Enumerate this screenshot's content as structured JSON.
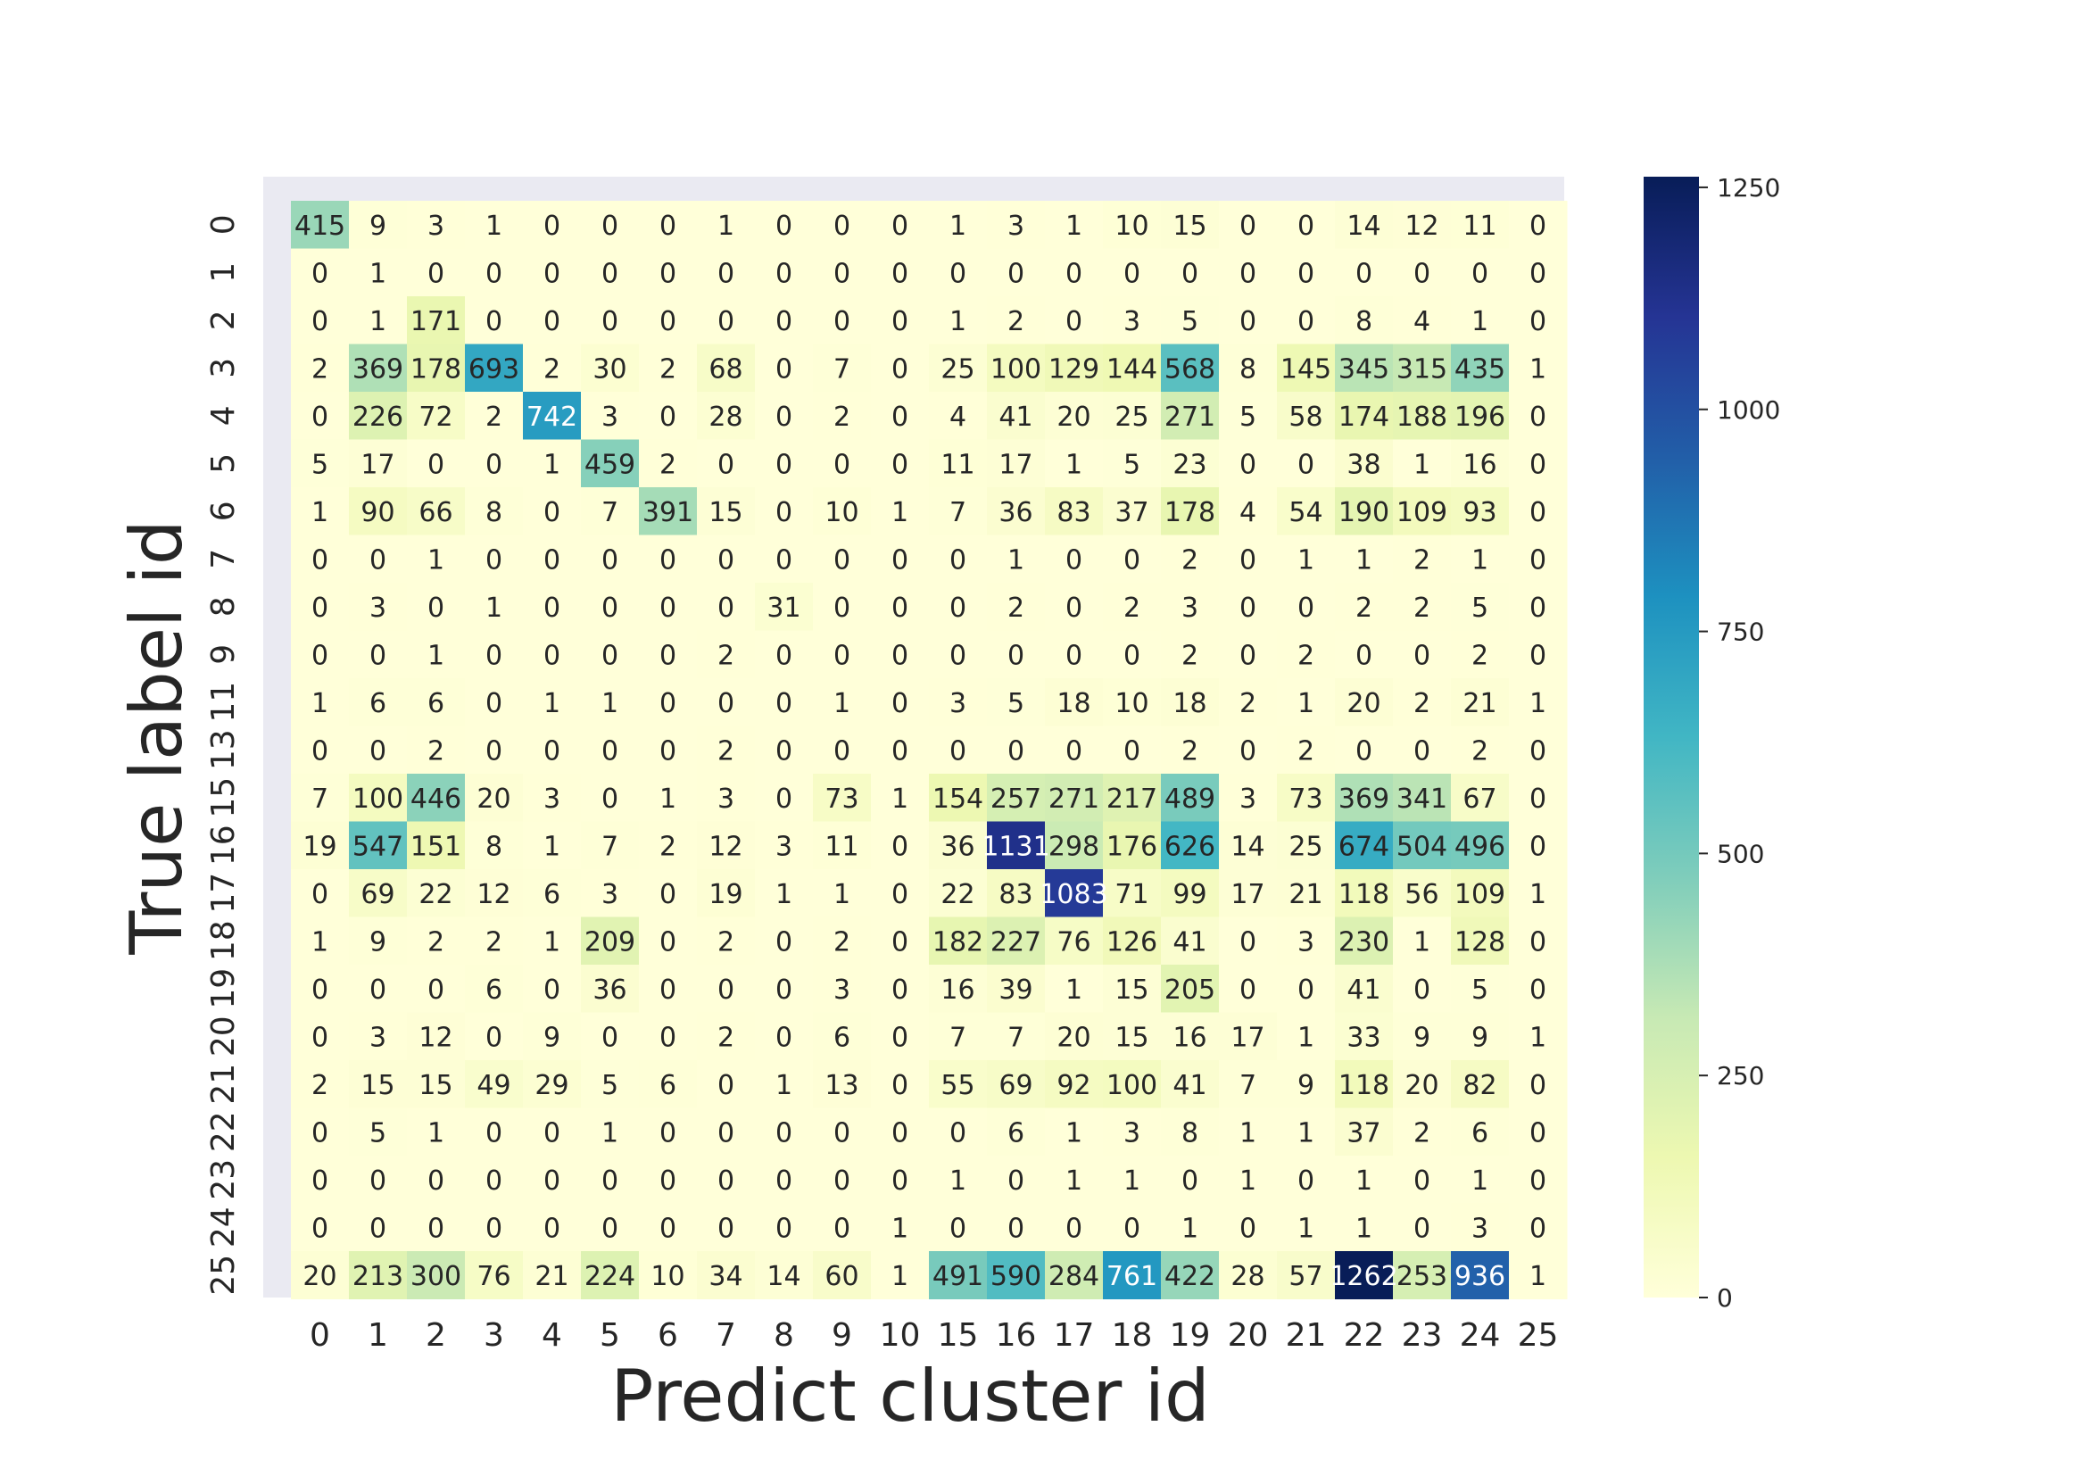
{
  "chart_data": {
    "type": "heatmap",
    "xlabel": "Predict cluster id",
    "ylabel": "True label id",
    "x_categories": [
      "0",
      "1",
      "2",
      "3",
      "4",
      "5",
      "6",
      "7",
      "8",
      "9",
      "10",
      "15",
      "16",
      "17",
      "18",
      "19",
      "20",
      "21",
      "22",
      "23",
      "24",
      "25"
    ],
    "y_categories": [
      "0",
      "1",
      "2",
      "3",
      "4",
      "5",
      "6",
      "7",
      "8",
      "9",
      "11",
      "13",
      "15",
      "16",
      "17",
      "18",
      "19",
      "20",
      "21",
      "22",
      "23",
      "24",
      "25"
    ],
    "values": [
      [
        415,
        9,
        3,
        1,
        0,
        0,
        0,
        1,
        0,
        0,
        0,
        1,
        3,
        1,
        10,
        15,
        0,
        0,
        14,
        12,
        11,
        0
      ],
      [
        0,
        1,
        0,
        0,
        0,
        0,
        0,
        0,
        0,
        0,
        0,
        0,
        0,
        0,
        0,
        0,
        0,
        0,
        0,
        0,
        0,
        0
      ],
      [
        0,
        1,
        171,
        0,
        0,
        0,
        0,
        0,
        0,
        0,
        0,
        1,
        2,
        0,
        3,
        5,
        0,
        0,
        8,
        4,
        1,
        0
      ],
      [
        2,
        369,
        178,
        693,
        2,
        30,
        2,
        68,
        0,
        7,
        0,
        25,
        100,
        129,
        144,
        568,
        8,
        145,
        345,
        315,
        435,
        1
      ],
      [
        0,
        226,
        72,
        2,
        742,
        3,
        0,
        28,
        0,
        2,
        0,
        4,
        41,
        20,
        25,
        271,
        5,
        58,
        174,
        188,
        196,
        0
      ],
      [
        5,
        17,
        0,
        0,
        1,
        459,
        2,
        0,
        0,
        0,
        0,
        11,
        17,
        1,
        5,
        23,
        0,
        0,
        38,
        1,
        16,
        0
      ],
      [
        1,
        90,
        66,
        8,
        0,
        7,
        391,
        15,
        0,
        10,
        1,
        7,
        36,
        83,
        37,
        178,
        4,
        54,
        190,
        109,
        93,
        0
      ],
      [
        0,
        0,
        1,
        0,
        0,
        0,
        0,
        0,
        0,
        0,
        0,
        0,
        1,
        0,
        0,
        2,
        0,
        1,
        1,
        2,
        1,
        0
      ],
      [
        0,
        3,
        0,
        1,
        0,
        0,
        0,
        0,
        31,
        0,
        0,
        0,
        2,
        0,
        2,
        3,
        0,
        0,
        2,
        2,
        5,
        0
      ],
      [
        0,
        0,
        1,
        0,
        0,
        0,
        0,
        2,
        0,
        0,
        0,
        0,
        0,
        0,
        0,
        2,
        0,
        2,
        0,
        0,
        2,
        0
      ],
      [
        1,
        6,
        6,
        0,
        1,
        1,
        0,
        0,
        0,
        1,
        0,
        3,
        5,
        18,
        10,
        18,
        2,
        1,
        20,
        2,
        21,
        1
      ],
      [
        0,
        0,
        2,
        0,
        0,
        0,
        0,
        2,
        0,
        0,
        0,
        0,
        0,
        0,
        0,
        2,
        0,
        2,
        0,
        0,
        2,
        0
      ],
      [
        7,
        100,
        446,
        20,
        3,
        0,
        1,
        3,
        0,
        73,
        1,
        154,
        257,
        271,
        217,
        489,
        3,
        73,
        369,
        341,
        67,
        0
      ],
      [
        19,
        547,
        151,
        8,
        1,
        7,
        2,
        12,
        3,
        11,
        0,
        36,
        1131,
        298,
        176,
        626,
        14,
        25,
        674,
        504,
        496,
        0
      ],
      [
        0,
        69,
        22,
        12,
        6,
        3,
        0,
        19,
        1,
        1,
        0,
        22,
        83,
        1083,
        71,
        99,
        17,
        21,
        118,
        56,
        109,
        1
      ],
      [
        1,
        9,
        2,
        2,
        1,
        209,
        0,
        2,
        0,
        2,
        0,
        182,
        227,
        76,
        126,
        41,
        0,
        3,
        230,
        1,
        128,
        0
      ],
      [
        0,
        0,
        0,
        6,
        0,
        36,
        0,
        0,
        0,
        3,
        0,
        16,
        39,
        1,
        15,
        205,
        0,
        0,
        41,
        0,
        5,
        0
      ],
      [
        0,
        3,
        12,
        0,
        9,
        0,
        0,
        2,
        0,
        6,
        0,
        7,
        7,
        20,
        15,
        16,
        17,
        1,
        33,
        9,
        9,
        1
      ],
      [
        2,
        15,
        15,
        49,
        29,
        5,
        6,
        0,
        1,
        13,
        0,
        55,
        69,
        92,
        100,
        41,
        7,
        9,
        118,
        20,
        82,
        0
      ],
      [
        0,
        5,
        1,
        0,
        0,
        1,
        0,
        0,
        0,
        0,
        0,
        0,
        6,
        1,
        3,
        8,
        1,
        1,
        37,
        2,
        6,
        0
      ],
      [
        0,
        0,
        0,
        0,
        0,
        0,
        0,
        0,
        0,
        0,
        0,
        1,
        0,
        1,
        1,
        0,
        1,
        0,
        1,
        0,
        1,
        0
      ],
      [
        0,
        0,
        0,
        0,
        0,
        0,
        0,
        0,
        0,
        0,
        1,
        0,
        0,
        0,
        0,
        1,
        0,
        1,
        1,
        0,
        3,
        0
      ],
      [
        20,
        213,
        300,
        76,
        21,
        224,
        10,
        34,
        14,
        60,
        1,
        491,
        590,
        284,
        761,
        422,
        28,
        57,
        1262,
        253,
        936,
        1
      ]
    ],
    "colorbar": {
      "vmin": 0,
      "vmax": 1262,
      "ticks": [
        0,
        250,
        500,
        750,
        1000,
        1250
      ],
      "tick_labels": [
        "0",
        "250",
        "500",
        "750",
        "1000",
        "1250"
      ]
    },
    "colormap": "YlGnBu",
    "colormap_stops": [
      "#ffffd9",
      "#edf8b1",
      "#c7e9b4",
      "#7fcdbb",
      "#41b6c4",
      "#1d91c0",
      "#225ea8",
      "#253494",
      "#081d58"
    ],
    "background_color": "#eaeaf2",
    "grid": false
  }
}
